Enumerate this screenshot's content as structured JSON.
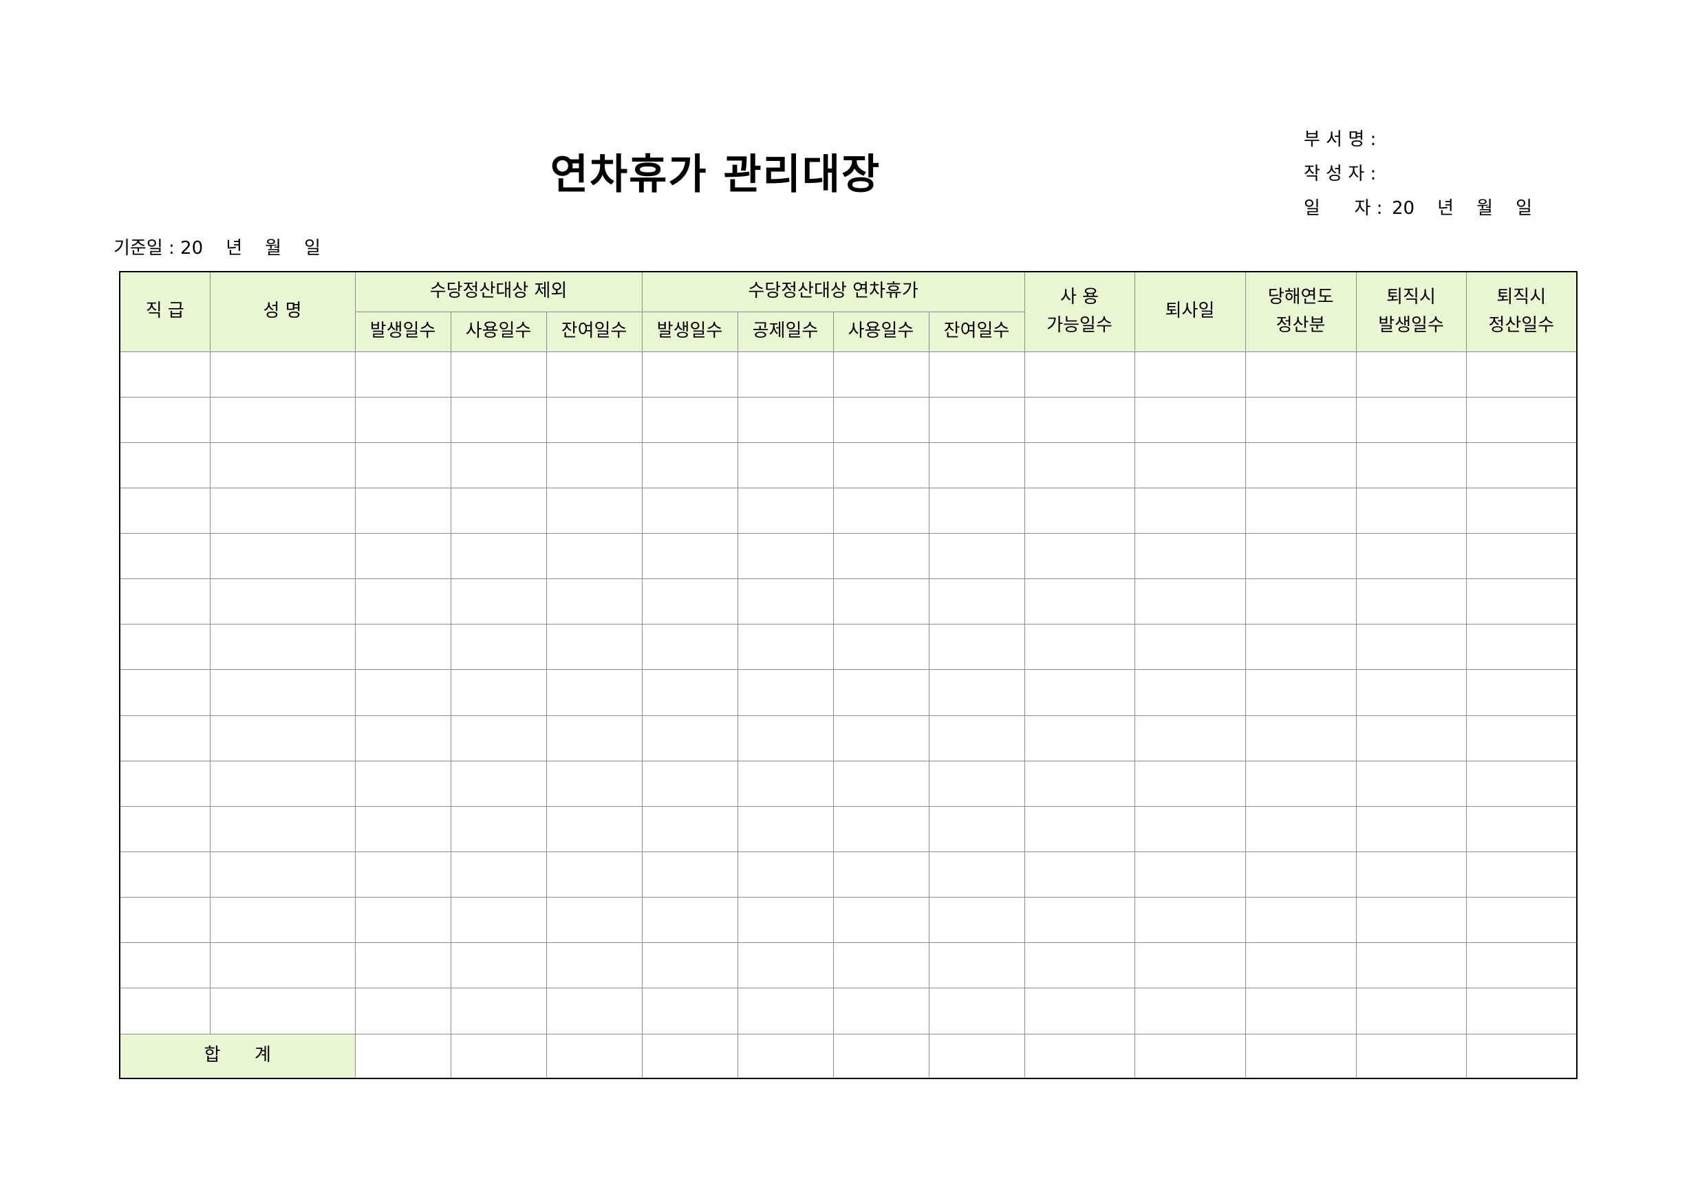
{
  "title": "연차휴가 관리대장",
  "meta": {
    "department_label": "부 서 명 :",
    "author_label": "작 성 자 :",
    "date_label": "일      자 :",
    "date_value": "20    년    월    일"
  },
  "base_date": {
    "label": "기준일",
    "value": " : 20    년    월    일"
  },
  "table": {
    "headers": {
      "rank": "직 급",
      "name": "성    명",
      "group_excluded": "수당정산대상  제외",
      "group_included": "수당정산대상  연차휴가",
      "available": "사       용\n가능일수",
      "resign_date": "퇴사일",
      "current_year": "당해연도\n정산분",
      "resign_generated": "퇴직시\n발생일수",
      "resign_settlement": "퇴직시\n정산일수",
      "excluded_sub": [
        "발생일수",
        "사용일수",
        "잔여일수"
      ],
      "included_sub": [
        "발생일수",
        "공제일수",
        "사용일수",
        "잔여일수"
      ]
    },
    "empty_row_count": 15,
    "total_label": "합      계"
  }
}
